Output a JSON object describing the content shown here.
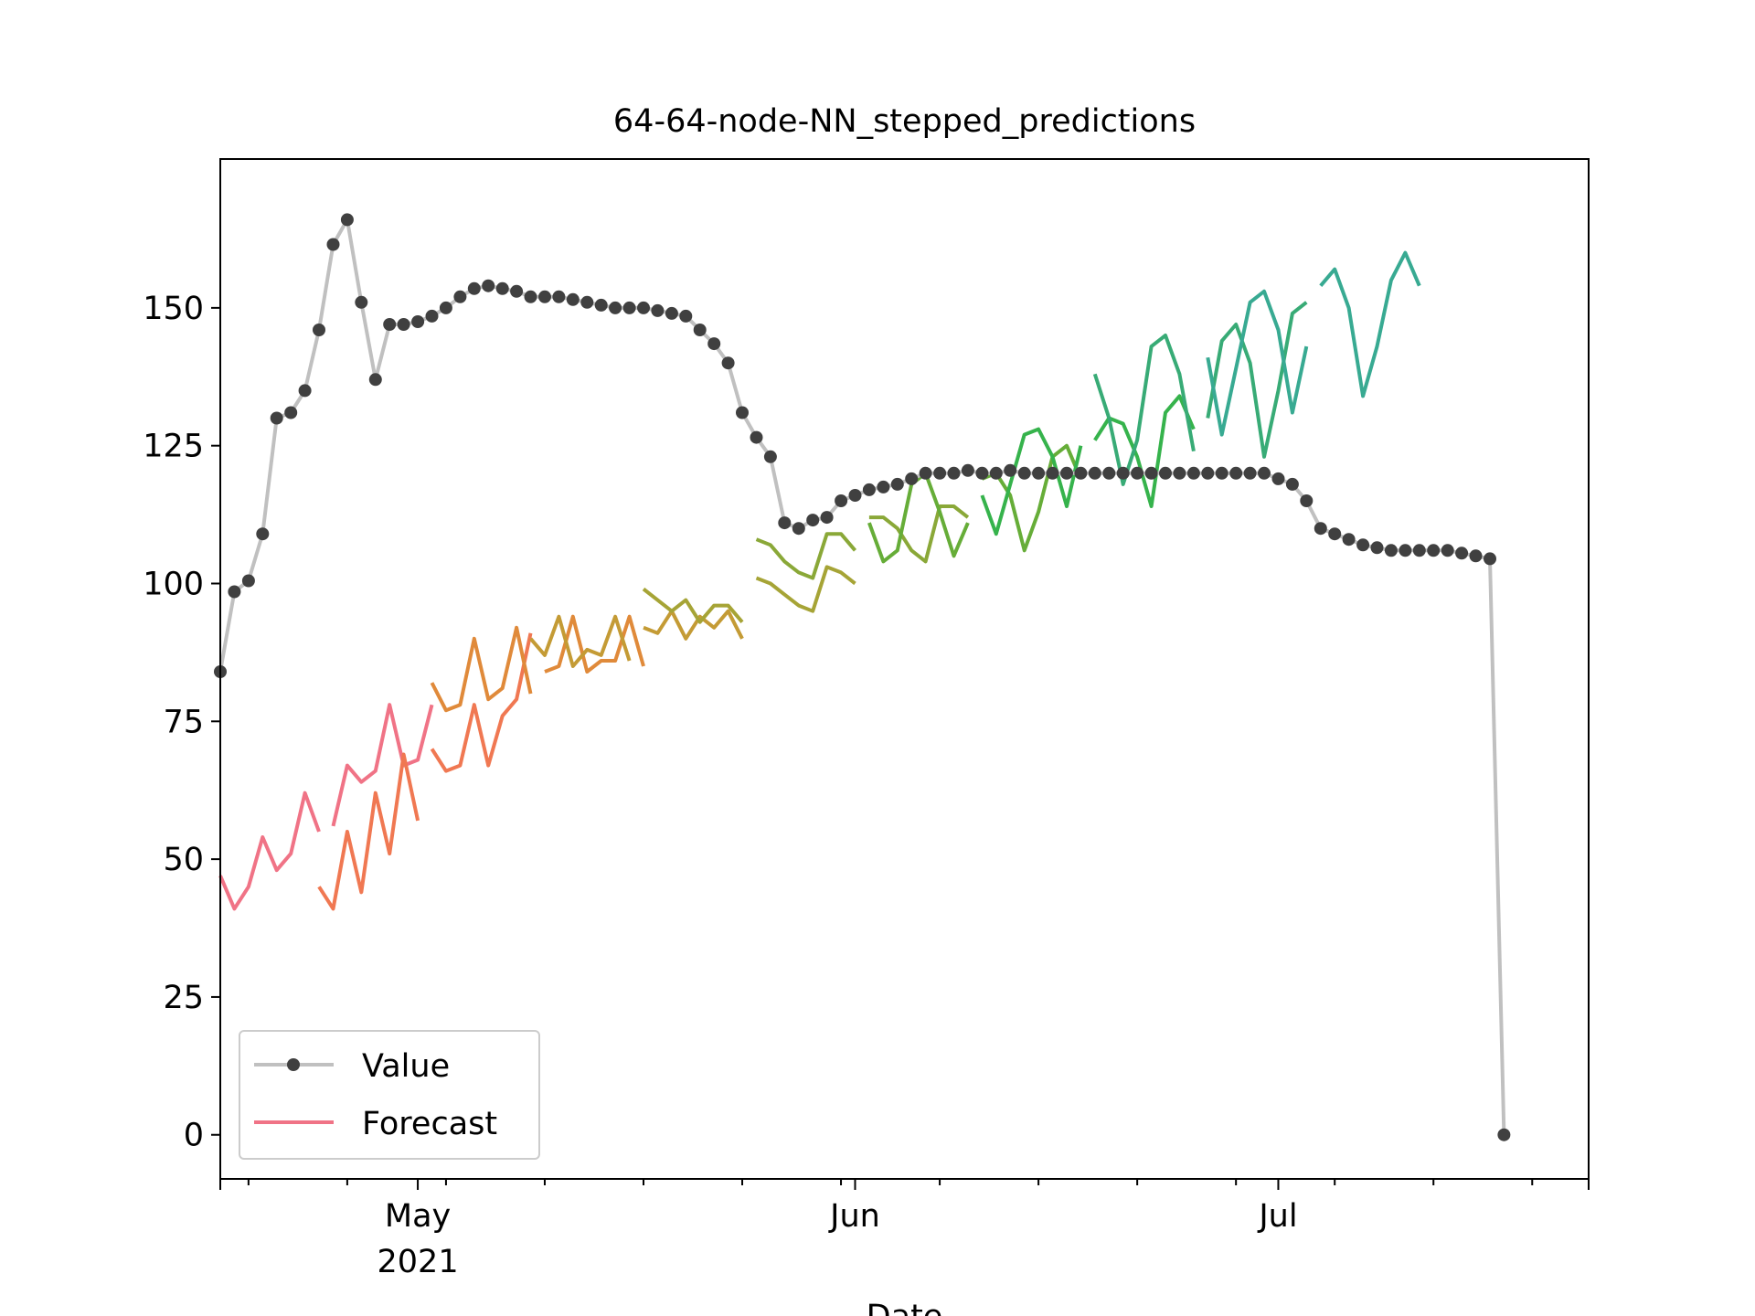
{
  "chart_data": {
    "type": "line",
    "title": "64-64-node-NN_stepped_predictions",
    "xlabel": "Date",
    "ylabel": "",
    "xlim": [
      "2021-04-17",
      "2021-07-23"
    ],
    "ylim": [
      -8,
      177
    ],
    "y_ticks": [
      0,
      25,
      50,
      75,
      100,
      125,
      150
    ],
    "x_major_ticks": [
      {
        "date": "2021-05-01",
        "label": "May",
        "sublabel": "2021"
      },
      {
        "date": "2021-06-01",
        "label": "Jun",
        "sublabel": ""
      },
      {
        "date": "2021-07-01",
        "label": "Jul",
        "sublabel": ""
      }
    ],
    "x_minor_ticks": [
      "2021-04-19",
      "2021-04-26",
      "2021-05-03",
      "2021-05-10",
      "2021-05-17",
      "2021-05-24",
      "2021-05-31",
      "2021-06-07",
      "2021-06-14",
      "2021-06-21",
      "2021-06-28",
      "2021-07-05",
      "2021-07-12",
      "2021-07-19"
    ],
    "grid": false,
    "legend_position": "lower-left",
    "legend": [
      {
        "label": "Value",
        "style": "line-with-dots",
        "line_color": "#c0c0c0",
        "marker_color": "#404040"
      },
      {
        "label": "Forecast",
        "style": "line",
        "color": "#f07386"
      }
    ],
    "series": [
      {
        "name": "Value",
        "line_color": "#c0c0c0",
        "marker_color": "#404040",
        "x_start": "2021-04-17",
        "step_days": 1,
        "values": [
          84,
          98.5,
          100.5,
          109,
          130,
          131,
          135,
          146,
          161.5,
          166,
          151,
          137,
          147,
          147,
          147.5,
          148.5,
          150,
          152,
          153.5,
          154,
          153.5,
          153,
          152,
          152,
          152,
          151.5,
          151,
          150.5,
          150,
          150,
          150,
          149.5,
          149,
          148.5,
          146,
          143.5,
          140,
          131,
          126.5,
          123,
          111,
          110,
          111.5,
          112,
          115,
          116,
          117,
          117.5,
          118,
          119,
          120,
          120,
          120,
          120.5,
          120,
          120,
          120.5,
          120,
          120,
          120,
          120,
          120,
          120,
          120,
          120,
          120,
          120,
          120,
          120,
          120,
          120,
          120,
          120,
          120,
          120,
          119,
          118,
          115,
          110,
          109,
          108,
          107,
          106.5,
          106,
          106,
          106,
          106,
          106,
          105.5,
          105,
          104.5,
          0
        ]
      },
      {
        "name": "",
        "colors": [
          "#f07386",
          "#f07852",
          "#e08a3a",
          "#c49b35",
          "#a6a436",
          "#8aa838",
          "#66ad38",
          "#36b34c",
          "#38ab76",
          "#38aa92"
        ],
        "x_start": "2021-04-17",
        "segment_starts": [
          0,
          7,
          15,
          22,
          30,
          38,
          46,
          54,
          62,
          70
        ],
        "segment_points": 8,
        "blocks": [
          [
            47,
            41,
            45,
            54,
            48,
            51,
            62,
            55,
            56,
            67,
            64,
            66,
            78,
            67,
            68,
            78
          ],
          [
            45,
            41,
            55,
            44,
            62,
            51,
            69,
            57,
            70,
            66,
            67,
            78,
            67,
            76,
            79,
            91
          ],
          [
            82,
            77,
            78,
            90,
            79,
            81,
            92,
            80,
            84,
            85,
            94,
            84,
            86,
            86,
            94,
            85
          ],
          [
            90,
            87,
            94,
            85,
            88,
            87,
            94,
            86,
            92,
            91,
            95,
            90,
            94,
            92,
            95,
            90
          ],
          [
            99,
            97,
            95,
            97,
            93,
            96,
            96,
            93,
            101,
            100,
            98,
            96,
            95,
            103,
            102,
            100
          ],
          [
            108,
            107,
            104,
            102,
            101,
            109,
            109,
            106,
            112,
            112,
            110,
            106,
            104,
            114,
            114,
            112
          ],
          [
            111,
            104,
            106,
            118,
            120,
            113,
            105,
            111,
            119,
            120,
            116,
            106,
            113,
            123,
            125,
            119
          ],
          [
            116,
            109,
            118,
            127,
            128,
            123,
            114,
            125,
            126,
            130,
            129,
            123,
            114,
            131,
            134,
            128
          ],
          [
            138,
            130,
            118,
            126,
            143,
            145,
            138,
            124,
            130,
            144,
            147,
            140,
            123,
            135,
            149,
            151
          ],
          [
            141,
            127,
            139,
            151,
            153,
            146,
            131,
            143,
            154,
            157,
            150,
            134,
            143,
            155,
            160,
            154
          ]
        ]
      }
    ]
  }
}
